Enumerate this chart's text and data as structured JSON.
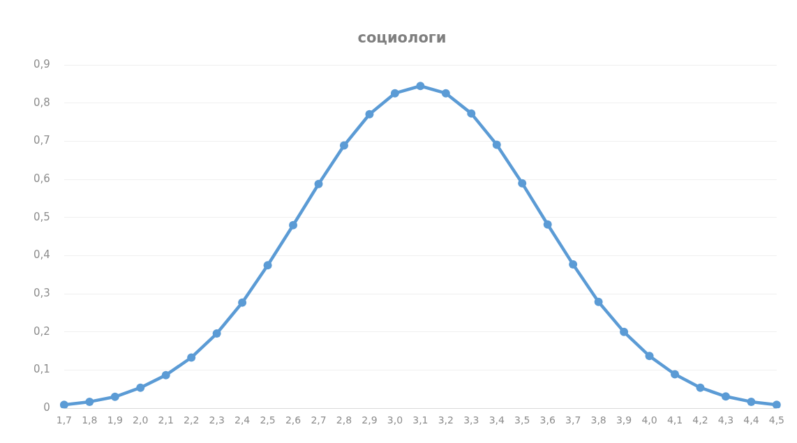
{
  "chart_data": {
    "type": "line",
    "title": "социологи",
    "categories": [
      "1,7",
      "1,8",
      "1,9",
      "2,0",
      "2,1",
      "2,2",
      "2,3",
      "2,4",
      "2,5",
      "2,6",
      "2,7",
      "2,8",
      "2,9",
      "3,0",
      "3,1",
      "3,2",
      "3,3",
      "3,4",
      "3,5",
      "3,6",
      "3,7",
      "3,8",
      "3,9",
      "4,0",
      "4,1",
      "4,2",
      "4,3",
      "4,4",
      "4,5"
    ],
    "series": [
      {
        "color": "#5b9bd5",
        "values": [
          0.009,
          0.017,
          0.03,
          0.054,
          0.087,
          0.133,
          0.196,
          0.277,
          0.375,
          0.48,
          0.588,
          0.689,
          0.771,
          0.826,
          0.845,
          0.826,
          0.773,
          0.691,
          0.59,
          0.482,
          0.377,
          0.279,
          0.2,
          0.137,
          0.089,
          0.054,
          0.031,
          0.017,
          0.009
        ]
      }
    ],
    "ylim": [
      0,
      0.9
    ],
    "yticks": [
      {
        "value": 0,
        "label": "0"
      },
      {
        "value": 0.1,
        "label": "0,1"
      },
      {
        "value": 0.2,
        "label": "0,2"
      },
      {
        "value": 0.3,
        "label": "0,3"
      },
      {
        "value": 0.4,
        "label": "0,4"
      },
      {
        "value": 0.5,
        "label": "0,5"
      },
      {
        "value": 0.6,
        "label": "0,6"
      },
      {
        "value": 0.7,
        "label": "0,7"
      },
      {
        "value": 0.8,
        "label": "0,8"
      },
      {
        "value": 0.9,
        "label": "0,9"
      }
    ],
    "grid": "y",
    "legend": false,
    "marker": "circle",
    "line_style": "solid"
  }
}
